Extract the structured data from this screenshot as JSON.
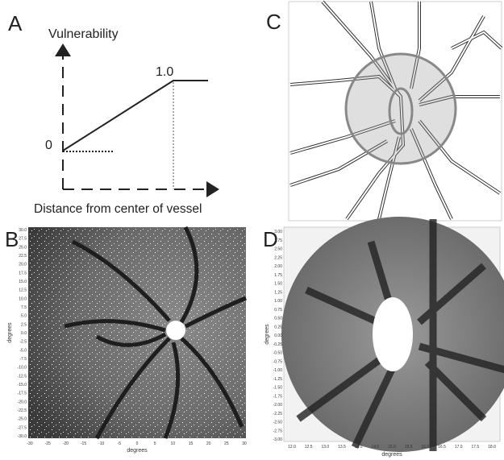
{
  "panels": [
    {
      "letter": "A",
      "y_label": "Vulnerability",
      "x_label": "Distance from center of vessel",
      "top_label": "1.0",
      "bottom_label": "0"
    },
    {
      "letter": "B",
      "x_axis_title": "degrees",
      "y_axis_title": "degrees",
      "x_ticks": [
        "-30",
        "-25",
        "-20",
        "-15",
        "-10",
        "-5",
        "0",
        "5",
        "10",
        "15",
        "20",
        "25",
        "30"
      ],
      "y_ticks": [
        "30.0",
        "27.5",
        "25.0",
        "22.5",
        "20.0",
        "17.5",
        "15.0",
        "12.5",
        "10.0",
        "7.5",
        "5.0",
        "2.5",
        "0.0",
        "-2.5",
        "-5.0",
        "-7.5",
        "-10.0",
        "-12.5",
        "-15.0",
        "-17.5",
        "-20.0",
        "-22.5",
        "-25.0",
        "-27.5",
        "-30.0"
      ]
    },
    {
      "letter": "C"
    },
    {
      "letter": "D",
      "x_axis_title": "degrees",
      "y_axis_title": "degrees",
      "x_ticks": [
        "12.0",
        "12.5",
        "13.0",
        "13.5",
        "14.0",
        "14.5",
        "15.0",
        "15.5",
        "16.0",
        "16.5",
        "17.0",
        "17.5",
        "18.0"
      ],
      "y_ticks": [
        "3.00",
        "2.75",
        "2.50",
        "2.25",
        "2.00",
        "1.75",
        "1.50",
        "1.25",
        "1.00",
        "0.75",
        "0.50",
        "0.25",
        "0.00",
        "-0.25",
        "-0.50",
        "-0.75",
        "-1.00",
        "-1.25",
        "-1.50",
        "-1.75",
        "-2.00",
        "-2.25",
        "-2.50",
        "-2.75",
        "-3.00"
      ]
    }
  ]
}
